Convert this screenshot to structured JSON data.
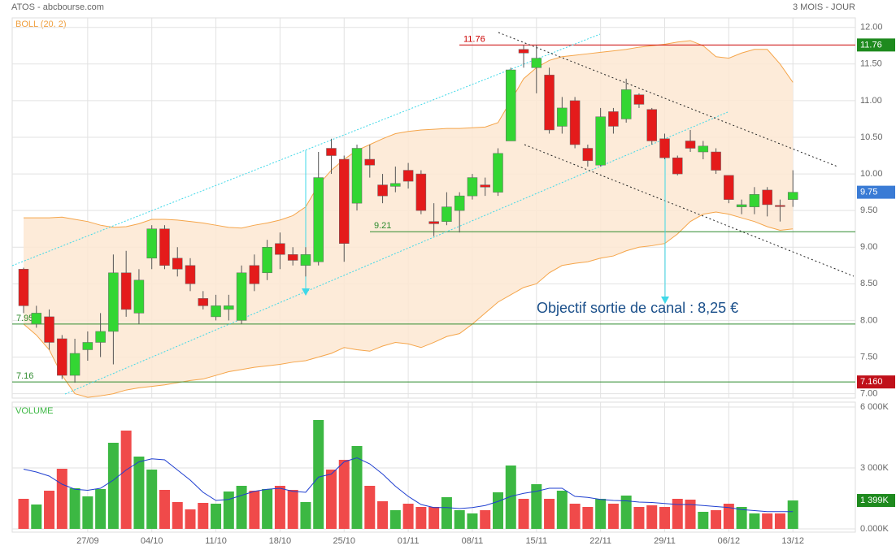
{
  "chart_data": [
    {
      "type": "candlestick",
      "title": "ATOS - abcbourse.com",
      "period": "3 MOIS - JOUR",
      "indicator": "BOLL (20, 2)",
      "annotation": "Objectif sortie de canal : 8,25 €",
      "categories": [
        null,
        null,
        null,
        null,
        null,
        "27/09",
        null,
        null,
        null,
        null,
        "04/10",
        null,
        null,
        null,
        null,
        "11/10",
        null,
        null,
        null,
        null,
        "18/10",
        null,
        null,
        null,
        null,
        "25/10",
        null,
        null,
        null,
        null,
        "01/11",
        null,
        null,
        null,
        null,
        "08/11",
        null,
        null,
        null,
        null,
        "15/11",
        null,
        null,
        null,
        null,
        "22/11",
        null,
        null,
        null,
        null,
        "29/11",
        null,
        null,
        null,
        null,
        "06/12",
        null,
        null,
        null,
        null,
        "13/12"
      ],
      "open": [
        8.7,
        7.95,
        8.05,
        7.75,
        7.25,
        7.6,
        7.7,
        7.85,
        8.65,
        8.1,
        8.85,
        9.25,
        8.85,
        8.75,
        8.3,
        8.05,
        8.15,
        8.0,
        8.75,
        8.65,
        9.05,
        8.9,
        8.75,
        8.8,
        10.35,
        10.2,
        9.6,
        10.2,
        9.85,
        9.83,
        10.05,
        10.0,
        9.35,
        9.35,
        9.5,
        9.7,
        9.85,
        9.75,
        10.45,
        11.7,
        11.45,
        11.35,
        10.65,
        11.0,
        10.35,
        10.12,
        10.85,
        10.75,
        11.08,
        10.88,
        10.48,
        10.22,
        10.45,
        10.3,
        10.3,
        9.98,
        9.55,
        9.55,
        9.78,
        9.57,
        9.65
      ],
      "close": [
        8.2,
        8.1,
        7.7,
        7.25,
        7.55,
        7.7,
        7.85,
        8.65,
        8.15,
        8.55,
        9.25,
        8.75,
        8.7,
        8.5,
        8.2,
        8.2,
        8.2,
        8.65,
        8.5,
        9.0,
        8.9,
        8.82,
        8.9,
        9.95,
        10.25,
        9.05,
        10.35,
        10.12,
        9.7,
        9.87,
        9.9,
        9.5,
        9.32,
        9.55,
        9.7,
        9.95,
        9.82,
        10.28,
        11.42,
        11.65,
        11.58,
        10.6,
        10.9,
        10.4,
        10.18,
        10.78,
        10.65,
        11.15,
        10.95,
        10.45,
        10.22,
        10.0,
        10.35,
        10.38,
        10.05,
        9.65,
        9.58,
        9.72,
        9.58,
        9.56,
        9.75
      ],
      "high": [
        8.72,
        8.2,
        8.15,
        7.8,
        7.75,
        7.85,
        8.1,
        8.9,
        8.95,
        8.7,
        9.3,
        9.3,
        9.0,
        8.85,
        8.4,
        8.35,
        8.35,
        8.75,
        8.9,
        9.1,
        9.2,
        9.0,
        9.0,
        10.3,
        10.48,
        10.25,
        10.4,
        10.4,
        10.0,
        10.1,
        10.15,
        10.05,
        9.6,
        9.75,
        9.75,
        10.0,
        9.95,
        10.35,
        11.45,
        11.76,
        11.76,
        11.45,
        11.05,
        11.05,
        10.4,
        10.9,
        10.9,
        11.3,
        11.1,
        10.9,
        10.55,
        10.25,
        10.6,
        10.45,
        10.35,
        9.98,
        9.65,
        9.82,
        9.82,
        9.65,
        10.05
      ],
      "low": [
        8.1,
        7.9,
        7.6,
        7.2,
        7.15,
        7.45,
        7.5,
        7.4,
        8.05,
        7.95,
        8.7,
        8.7,
        8.6,
        8.4,
        8.15,
        8.0,
        8.0,
        7.95,
        8.4,
        8.55,
        8.7,
        8.75,
        8.6,
        8.75,
        10.0,
        8.8,
        9.5,
        9.95,
        9.6,
        9.75,
        9.8,
        9.45,
        9.15,
        9.3,
        9.2,
        9.65,
        9.7,
        9.7,
        10.45,
        11.45,
        11.1,
        10.55,
        10.55,
        10.35,
        10.1,
        10.1,
        10.55,
        10.7,
        10.9,
        10.4,
        10.2,
        9.98,
        10.3,
        10.2,
        10.0,
        9.6,
        9.45,
        9.45,
        9.42,
        9.35,
        9.55
      ],
      "boll_upper": [
        9.4,
        9.4,
        9.4,
        9.41,
        9.38,
        9.35,
        9.3,
        9.27,
        9.28,
        9.32,
        9.38,
        9.38,
        9.37,
        9.35,
        9.33,
        9.3,
        9.27,
        9.26,
        9.3,
        9.33,
        9.37,
        9.43,
        9.55,
        9.85,
        10.05,
        10.2,
        10.32,
        10.4,
        10.48,
        10.55,
        10.58,
        10.6,
        10.61,
        10.62,
        10.62,
        10.63,
        10.64,
        10.7,
        11.0,
        11.3,
        11.45,
        11.55,
        11.6,
        11.62,
        11.64,
        11.66,
        11.68,
        11.7,
        11.73,
        11.75,
        11.77,
        11.8,
        11.82,
        11.75,
        11.6,
        11.58,
        11.65,
        11.7,
        11.7,
        11.5,
        11.25
      ],
      "boll_lower": [
        7.95,
        7.8,
        7.6,
        7.25,
        7.0,
        6.95,
        6.97,
        7.0,
        7.05,
        7.08,
        7.1,
        7.12,
        7.15,
        7.18,
        7.2,
        7.25,
        7.3,
        7.33,
        7.36,
        7.38,
        7.4,
        7.43,
        7.45,
        7.5,
        7.55,
        7.63,
        7.6,
        7.58,
        7.65,
        7.7,
        7.68,
        7.63,
        7.7,
        7.78,
        7.82,
        7.95,
        8.1,
        8.25,
        8.35,
        8.45,
        8.5,
        8.65,
        8.75,
        8.78,
        8.8,
        8.85,
        8.88,
        8.95,
        9.0,
        9.02,
        9.05,
        9.18,
        9.35,
        9.45,
        9.48,
        9.45,
        9.4,
        9.35,
        9.28,
        9.23,
        9.25
      ],
      "up_color": "#33d633",
      "down_color": "#e41b1b",
      "band_color": "#f5a54a",
      "band_fill": "#fde7d2",
      "levels": [
        {
          "value": 11.76,
          "color": "#cc0000"
        },
        {
          "value": 9.21,
          "color": "#2e8b2e"
        },
        {
          "value": 7.95,
          "color": "#2e8b2e"
        },
        {
          "value": 7.16,
          "color": "#2e8b2e"
        }
      ],
      "badges": [
        {
          "value": 11.76,
          "label": "11.76",
          "color": "#1e8a1e"
        },
        {
          "value": 9.75,
          "label": "9.75",
          "color": "#3a7bd5"
        },
        {
          "value": 7.16,
          "label": "7.160",
          "color": "#c0101a"
        }
      ],
      "ylim": [
        6.94,
        12.13
      ],
      "yticks": [
        {
          "value": 7,
          "label": "7.00"
        },
        {
          "value": 7.5,
          "label": "7.50"
        },
        {
          "value": 8,
          "label": "8.00"
        },
        {
          "value": 8.5,
          "label": "8.50"
        },
        {
          "value": 9,
          "label": "9.00"
        },
        {
          "value": 9.5,
          "label": "9.50"
        },
        {
          "value": 10,
          "label": "10.00"
        },
        {
          "value": 10.5,
          "label": "10.50"
        },
        {
          "value": 11,
          "label": "11.00"
        },
        {
          "value": 11.5,
          "label": "11.50"
        },
        {
          "value": 12,
          "label": "12.00"
        }
      ],
      "grid": true
    },
    {
      "type": "bar",
      "title": "VOLUME",
      "values": [
        1480,
        1200,
        1880,
        2960,
        2000,
        1600,
        1960,
        4240,
        4840,
        3560,
        2920,
        1920,
        1320,
        960,
        1280,
        1240,
        1840,
        2120,
        1880,
        1960,
        2120,
        1920,
        1320,
        5360,
        2920,
        3400,
        4080,
        2120,
        1360,
        920,
        1240,
        1080,
        1080,
        1560,
        920,
        760,
        920,
        1800,
        3120,
        1480,
        2200,
        1480,
        1880,
        1240,
        1080,
        1480,
        1240,
        1640,
        1080,
        1160,
        1080,
        1480,
        1440,
        840,
        920,
        1240,
        1080,
        760,
        760,
        760,
        1399
      ],
      "ma": [
        2940,
        2800,
        2600,
        2200,
        1950,
        1900,
        2000,
        2400,
        2900,
        3300,
        3450,
        3400,
        2900,
        2400,
        1800,
        1400,
        1450,
        1650,
        1850,
        1950,
        2000,
        1850,
        1800,
        2550,
        2700,
        3300,
        3500,
        3200,
        2700,
        2100,
        1600,
        1200,
        1050,
        1050,
        1000,
        1050,
        1150,
        1350,
        1600,
        1750,
        1850,
        2000,
        2000,
        1600,
        1550,
        1450,
        1400,
        1380,
        1320,
        1300,
        1250,
        1200,
        1200,
        1150,
        1100,
        1050,
        950,
        900,
        850,
        850,
        850
      ],
      "up_color": "#3cb843",
      "down_color": "#f04a4a",
      "ma_color": "#1f3fd0",
      "badges": [
        {
          "value": 1399,
          "label": "1 399K",
          "color": "#1e8a1e"
        }
      ],
      "ylim": [
        -160,
        6240
      ],
      "yticks": [
        {
          "value": 0,
          "label": "0.000K"
        },
        {
          "value": 3000,
          "label": "3 000K"
        },
        {
          "value": 6000,
          "label": "6 000K"
        }
      ],
      "grid": true
    }
  ]
}
